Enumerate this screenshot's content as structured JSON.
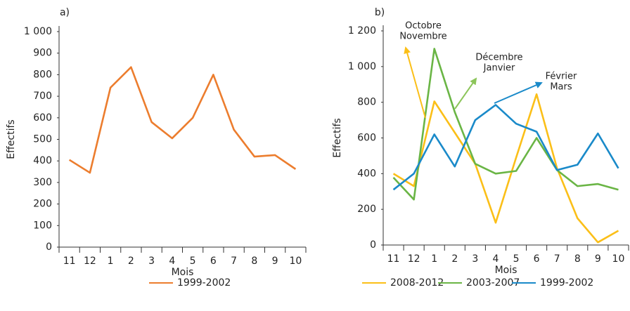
{
  "chart_data": [
    {
      "type": "line",
      "panel": "a)",
      "x_label": "Mois",
      "y_label": "Effectifs",
      "categories": [
        "11",
        "12",
        "1",
        "2",
        "3",
        "4",
        "5",
        "6",
        "7",
        "8",
        "9",
        "10"
      ],
      "series": [
        {
          "name": "1999-2002",
          "color": "#ec7d2e",
          "values": [
            405,
            345,
            740,
            835,
            580,
            505,
            600,
            800,
            545,
            420,
            427,
            362
          ]
        }
      ],
      "ylim": [
        0,
        1000
      ],
      "yticks": [
        0,
        100,
        200,
        300,
        400,
        500,
        600,
        700,
        800,
        900,
        {
          "value": 1000,
          "label": "1 000"
        }
      ]
    },
    {
      "type": "line",
      "panel": "b)",
      "x_label": "Mois",
      "y_label": "Effectifs",
      "categories": [
        "11",
        "12",
        "1",
        "2",
        "3",
        "4",
        "5",
        "6",
        "7",
        "8",
        "9",
        "10"
      ],
      "series": [
        {
          "name": "2008-2012",
          "color": "#fbbf18",
          "values": [
            400,
            330,
            805,
            630,
            455,
            125,
            490,
            845,
            430,
            150,
            15,
            80
          ]
        },
        {
          "name": "2003-2007",
          "color": "#6ab545",
          "values": [
            378,
            255,
            1100,
            745,
            455,
            400,
            415,
            600,
            420,
            330,
            342,
            310
          ]
        },
        {
          "name": "1999-2002",
          "color": "#1a8ac9",
          "values": [
            310,
            400,
            620,
            440,
            700,
            785,
            680,
            635,
            420,
            450,
            625,
            430
          ]
        }
      ],
      "ylim": [
        0,
        1200
      ],
      "yticks": [
        0,
        200,
        400,
        600,
        800,
        {
          "value": 1000,
          "label": "1 000"
        },
        {
          "value": 1200,
          "label": "1 200"
        }
      ],
      "annotations": [
        {
          "text": [
            "Octobre",
            "Novembre"
          ],
          "color": "#fbbf18"
        },
        {
          "text": [
            "Décembre",
            "Janvier"
          ],
          "color": "#8cc55a"
        },
        {
          "text": [
            "Février",
            "Mars"
          ],
          "color": "#1a8ac9"
        }
      ]
    }
  ]
}
